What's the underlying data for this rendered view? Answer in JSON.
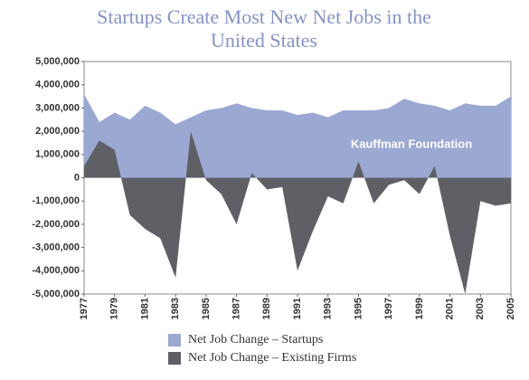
{
  "chart_data": {
    "type": "area",
    "title": "Startups Create Most New Net Jobs in the United States",
    "annotation": "Kauffman Foundation",
    "x": [
      1977,
      1978,
      1979,
      1980,
      1981,
      1982,
      1983,
      1984,
      1985,
      1986,
      1987,
      1988,
      1989,
      1990,
      1991,
      1992,
      1993,
      1994,
      1995,
      1996,
      1997,
      1998,
      1999,
      2000,
      2001,
      2002,
      2003,
      2004,
      2005
    ],
    "series": [
      {
        "name": "Net Job Change – Startups",
        "color": "#9aa8d2",
        "values": [
          3600000,
          2400000,
          2800000,
          2500000,
          3100000,
          2800000,
          2300000,
          2600000,
          2900000,
          3000000,
          3200000,
          3000000,
          2900000,
          2900000,
          2700000,
          2800000,
          2600000,
          2900000,
          2900000,
          2900000,
          3000000,
          3400000,
          3200000,
          3100000,
          2900000,
          3200000,
          3100000,
          3100000,
          3500000
        ]
      },
      {
        "name": "Net Job Change – Existing Firms",
        "color": "#5f5f66",
        "values": [
          500000,
          1600000,
          1200000,
          -1600000,
          -2200000,
          -2600000,
          -4300000,
          2000000,
          -100000,
          -700000,
          -2000000,
          200000,
          -500000,
          -400000,
          -4000000,
          -2300000,
          -800000,
          -1100000,
          700000,
          -1100000,
          -300000,
          -100000,
          -700000,
          500000,
          -2500000,
          -5000000,
          -1000000,
          -1200000,
          -1100000
        ]
      }
    ],
    "xlim": [
      1977,
      2005
    ],
    "xticks": [
      1977,
      1979,
      1981,
      1983,
      1985,
      1987,
      1989,
      1991,
      1993,
      1995,
      1997,
      1999,
      2001,
      2003,
      2005
    ],
    "ylim": [
      -5000000,
      5000000
    ],
    "yticks": [
      {
        "value": -5000000,
        "label": "-5,000,000"
      },
      {
        "value": -4000000,
        "label": "-4,000,000"
      },
      {
        "value": -3000000,
        "label": "-3,000,000"
      },
      {
        "value": -2000000,
        "label": "-2,000,000"
      },
      {
        "value": -1000000,
        "label": "-1,000,000"
      },
      0,
      {
        "value": 1000000,
        "label": "1,000,000"
      },
      {
        "value": 2000000,
        "label": "2,000,000"
      },
      {
        "value": 3000000,
        "label": "3,000,000"
      },
      {
        "value": 4000000,
        "label": "4,000,000"
      },
      {
        "value": 5000000,
        "label": "5,000,000"
      }
    ],
    "grid": false,
    "legend": "bottom"
  }
}
